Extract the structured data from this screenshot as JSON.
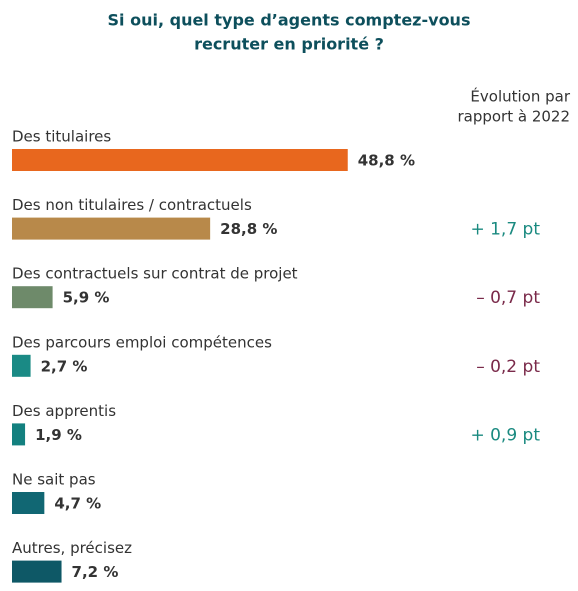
{
  "chart_data": {
    "type": "bar",
    "orientation": "horizontal",
    "title": [
      "Si oui, quel type d’agents comptez-vous",
      "recruter en priorité ?"
    ],
    "evolution_header": [
      "Évolution par",
      "rapport à 2022"
    ],
    "categories": [
      "Des titulaires",
      "Des non titulaires / contractuels",
      "Des contractuels sur contrat de projet",
      "Des parcours emploi compétences",
      "Des apprentis",
      "Ne sait pas",
      "Autres, précisez"
    ],
    "values": [
      48.8,
      28.8,
      5.9,
      2.7,
      1.9,
      4.7,
      7.2
    ],
    "value_labels": [
      "48,8 %",
      "28,8 %",
      "5,9 %",
      "2,7 %",
      "1,9 %",
      "4,7 %",
      "7,2 %"
    ],
    "colors": [
      "#e8671e",
      "#b8894a",
      "#6e8a6a",
      "#1a8a85",
      "#13807f",
      "#116773",
      "#0e5866"
    ],
    "evolution": [
      null,
      1.7,
      -0.7,
      -0.2,
      0.9,
      null,
      null
    ],
    "evolution_labels": [
      null,
      "+ 1,7 pt",
      "– 0,7 pt",
      "– 0,2 pt",
      "+ 0,9 pt",
      null,
      null
    ],
    "positive_color": "#1a8a80",
    "negative_color": "#7a2a4a",
    "xlim": [
      0,
      50
    ]
  }
}
